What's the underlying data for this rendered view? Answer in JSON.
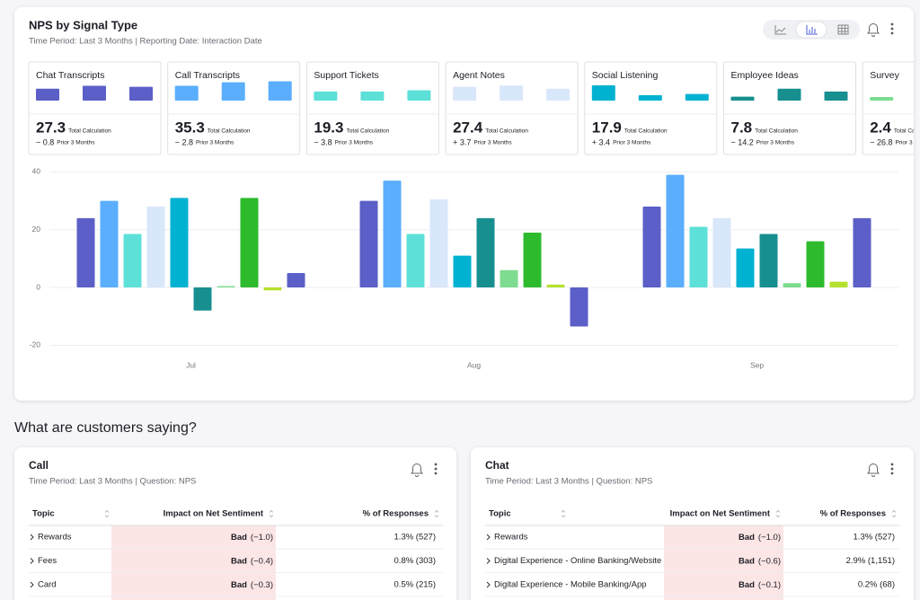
{
  "chart_data": {
    "type": "bar",
    "title": "NPS by Signal Type",
    "subtitle": "Time Period: Last 3 Months | Reporting Date: Interaction Date",
    "total_label": "Total Calculation",
    "prior_label": "Prior 3 Months",
    "categories": [
      "Jul",
      "Aug",
      "Sep"
    ],
    "series": [
      {
        "name": "Chat Transcripts",
        "color": "#5b5fc7",
        "values": [
          24,
          30,
          28
        ],
        "total": 27.3,
        "change": "− 0.8"
      },
      {
        "name": "Call Transcripts",
        "color": "#5aaefc",
        "values": [
          30,
          37,
          39
        ],
        "total": 35.3,
        "change": "− 2.8"
      },
      {
        "name": "Support Tickets",
        "color": "#5ce0d8",
        "values": [
          18.5,
          18.5,
          21
        ],
        "total": 19.3,
        "change": "− 3.8"
      },
      {
        "name": "Agent Notes",
        "color": "#d9e7fb",
        "values": [
          28,
          30.5,
          24
        ],
        "total": 27.4,
        "change": "+ 3.7"
      },
      {
        "name": "Social Listening",
        "color": "#00b2d2",
        "values": [
          31,
          11,
          13.5
        ],
        "total": 17.9,
        "change": "+ 3.4"
      },
      {
        "name": "Employee Ideas",
        "color": "#178f8f",
        "values": [
          -8,
          24,
          18.5
        ],
        "total": 7.8,
        "change": "− 14.2"
      },
      {
        "name": "Survey",
        "color": "#7ddc8f",
        "values": [
          0.5,
          6,
          1.5
        ],
        "total": 2.4,
        "change": "− 26.8"
      },
      {
        "color": "#2dbb2d",
        "values": [
          31,
          19,
          16
        ]
      },
      {
        "color": "#b5e02e",
        "values": [
          -1,
          1,
          2
        ]
      },
      {
        "color": "#5b5fc7",
        "values": [
          5,
          -13.5,
          24
        ]
      }
    ],
    "ylim": [
      -23,
      42
    ],
    "yticks": [
      -20,
      0,
      20,
      40
    ],
    "grid": true
  },
  "section_title": "What are customers saying?",
  "tables": [
    {
      "title": "Call",
      "subtitle": "Time Period: Last 3 Months | Question: NPS",
      "columns": [
        "Topic",
        "Impact on Net Sentiment",
        "% of Responses"
      ],
      "rows": [
        [
          "Rewards",
          "Bad",
          "(−1.0)",
          "1.3% (527)"
        ],
        [
          "Fees",
          "Bad",
          "(−0.4)",
          "0.8% (303)"
        ],
        [
          "Card",
          "Bad",
          "(−0.3)",
          "0.5% (215)"
        ]
      ]
    },
    {
      "title": "Chat",
      "subtitle": "Time Period: Last 3 Months | Question: NPS",
      "columns": [
        "Topic",
        "Impact on Net Sentiment",
        "% of Responses"
      ],
      "rows": [
        [
          "Rewards",
          "Bad",
          "(−1.0)",
          "1.3% (527)"
        ],
        [
          "Digital Experience - Online Banking/Website",
          "Bad",
          "(−0.6)",
          "2.9% (1,151)"
        ],
        [
          "Digital Experience - Mobile Banking/App",
          "Bad",
          "(−0.1)",
          "0.2% (68)"
        ]
      ]
    }
  ]
}
